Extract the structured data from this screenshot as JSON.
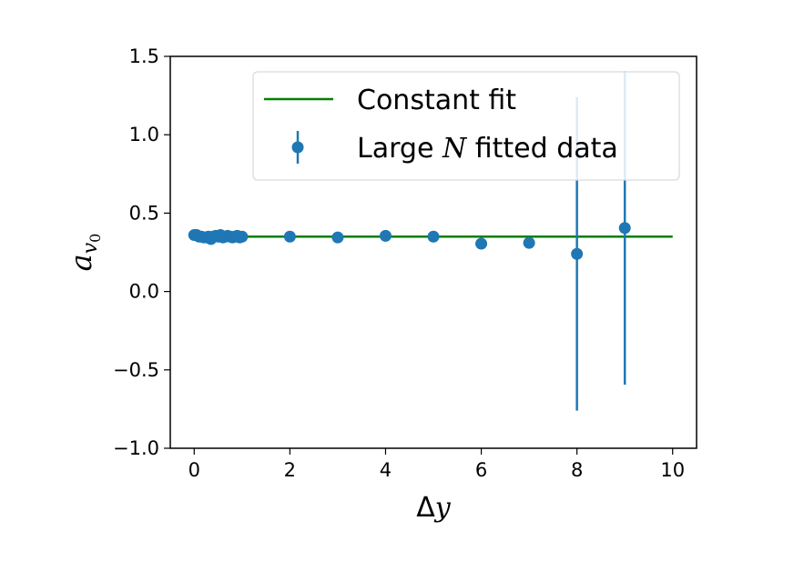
{
  "chart_data": {
    "type": "scatter",
    "title": "",
    "xlabel": "Δy",
    "ylabel": "a_v0",
    "ylabel_main": "a",
    "ylabel_sub": "v",
    "ylabel_subsub": "0",
    "xlim": [
      -0.5,
      10.5
    ],
    "ylim": [
      -1.0,
      1.5
    ],
    "xticks": [
      0,
      2,
      4,
      6,
      8,
      10
    ],
    "xtick_labels": [
      "0",
      "2",
      "4",
      "6",
      "8",
      "10"
    ],
    "yticks": [
      -1.0,
      -0.5,
      0.0,
      0.5,
      1.0,
      1.5
    ],
    "ytick_labels": [
      "−1.0",
      "−0.5",
      "0.0",
      "0.5",
      "1.0",
      "1.5"
    ],
    "grid": false,
    "legend_position": "top-right",
    "series": [
      {
        "name": "Constant fit",
        "kind": "line",
        "color": "#008000",
        "x": [
          0,
          10
        ],
        "y": [
          0.35,
          0.35
        ]
      },
      {
        "name": "Large N fitted data",
        "name_prefix": "Large ",
        "name_math": "N",
        "name_suffix": " fitted data",
        "kind": "errorbar",
        "color": "#1f77b4",
        "x": [
          0,
          0.05,
          0.1,
          0.15,
          0.2,
          0.25,
          0.3,
          0.35,
          0.4,
          0.45,
          0.5,
          0.55,
          0.6,
          0.65,
          0.7,
          0.75,
          0.8,
          0.85,
          0.9,
          0.95,
          1.0,
          2,
          3,
          4,
          5,
          6,
          7,
          8,
          9
        ],
        "y": [
          0.36,
          0.36,
          0.35,
          0.35,
          0.345,
          0.345,
          0.35,
          0.335,
          0.35,
          0.355,
          0.35,
          0.36,
          0.345,
          0.35,
          0.355,
          0.35,
          0.345,
          0.35,
          0.355,
          0.345,
          0.35,
          0.35,
          0.345,
          0.355,
          0.35,
          0.305,
          0.31,
          0.24,
          0.405
        ],
        "yerr": [
          0,
          0,
          0,
          0,
          0,
          0,
          0,
          0,
          0,
          0,
          0,
          0,
          0,
          0,
          0,
          0,
          0,
          0,
          0,
          0,
          0,
          0,
          0,
          0,
          0,
          0,
          0,
          1.0,
          1.0
        ]
      }
    ]
  }
}
